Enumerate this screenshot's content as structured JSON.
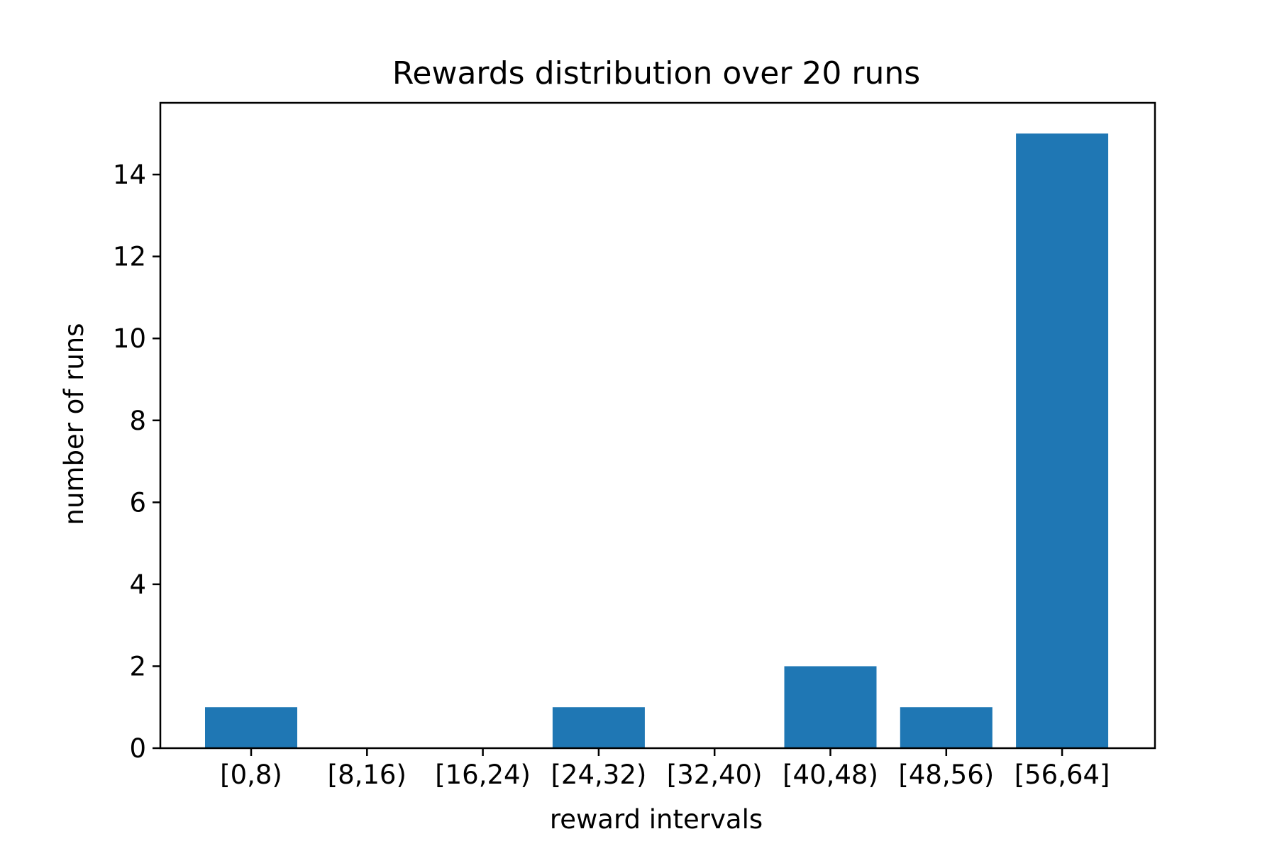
{
  "chart_data": {
    "type": "bar",
    "title": "Rewards distribution over 20 runs",
    "xlabel": "reward intervals",
    "ylabel": "number of runs",
    "categories": [
      "[0,8)",
      "[8,16)",
      "[16,24)",
      "[24,32)",
      "[32,40)",
      "[40,48)",
      "[48,56)",
      "[56,64]"
    ],
    "values": [
      1,
      0,
      0,
      1,
      0,
      2,
      1,
      15
    ],
    "ylim": [
      0,
      15.75
    ],
    "yticks": [
      0,
      2,
      4,
      6,
      8,
      10,
      12,
      14
    ],
    "grid": false,
    "bar_color": "#1f77b4"
  }
}
